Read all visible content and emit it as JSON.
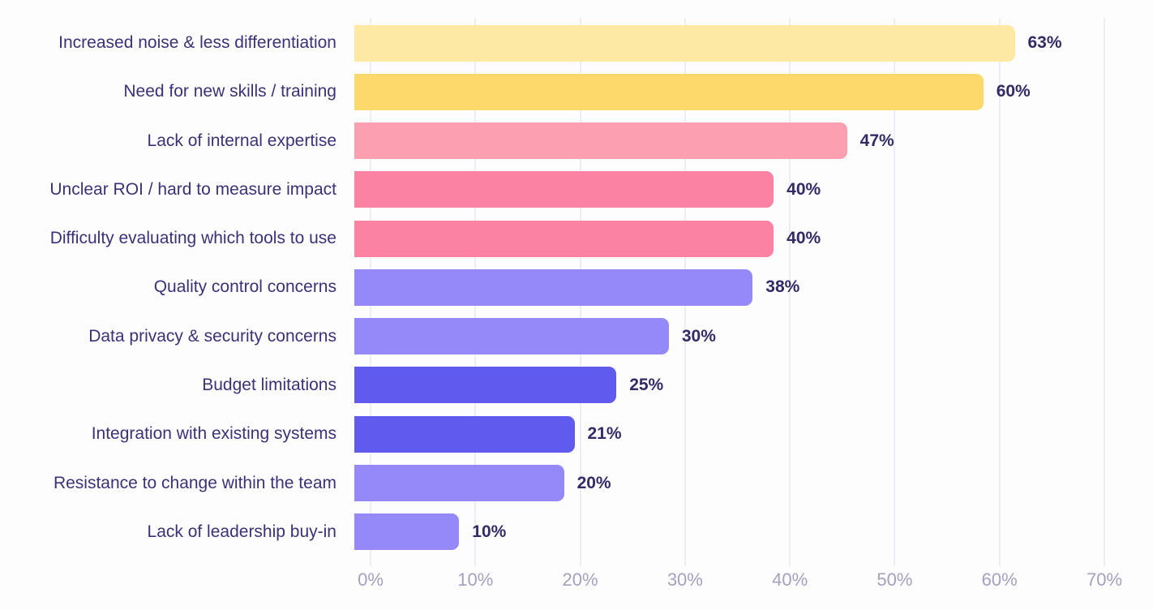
{
  "chart_data": {
    "type": "bar",
    "orientation": "horizontal",
    "title": "",
    "xlabel": "",
    "ylabel": "",
    "xlim": [
      0,
      70
    ],
    "grid": true,
    "categories": [
      "Increased noise & less differentiation",
      "Need for new skills / training",
      "Lack of internal expertise",
      "Unclear ROI / hard to measure impact",
      "Difficulty evaluating which tools to use",
      "Quality control concerns",
      "Data privacy & security concerns",
      "Budget limitations",
      "Integration with existing systems",
      "Resistance to change within the team",
      "Lack of leadership buy-in"
    ],
    "values": [
      63,
      60,
      47,
      40,
      40,
      38,
      30,
      25,
      21,
      20,
      10
    ],
    "value_labels": [
      "63%",
      "60%",
      "47%",
      "40%",
      "40%",
      "38%",
      "30%",
      "25%",
      "21%",
      "20%",
      "10%"
    ],
    "bar_colors": [
      "#fde8a4",
      "#fdd96b",
      "#fb9fb1",
      "#fb82a3",
      "#fb82a3",
      "#9589fa",
      "#9589fa",
      "#615aef",
      "#615aef",
      "#9589fa",
      "#9589fa"
    ],
    "x_ticks": [
      {
        "value": 0,
        "label": "0%"
      },
      {
        "value": 10,
        "label": "10%"
      },
      {
        "value": 20,
        "label": "20%"
      },
      {
        "value": 30,
        "label": "30%"
      },
      {
        "value": 40,
        "label": "40%"
      },
      {
        "value": 50,
        "label": "50%"
      },
      {
        "value": 60,
        "label": "60%"
      },
      {
        "value": 70,
        "label": "70%"
      }
    ],
    "colors": {
      "background": "#fdfdfe",
      "gridline": "#ededf4",
      "category_text": "#3a3277",
      "value_text": "#322b66",
      "axis_text": "#a5a0be"
    }
  }
}
